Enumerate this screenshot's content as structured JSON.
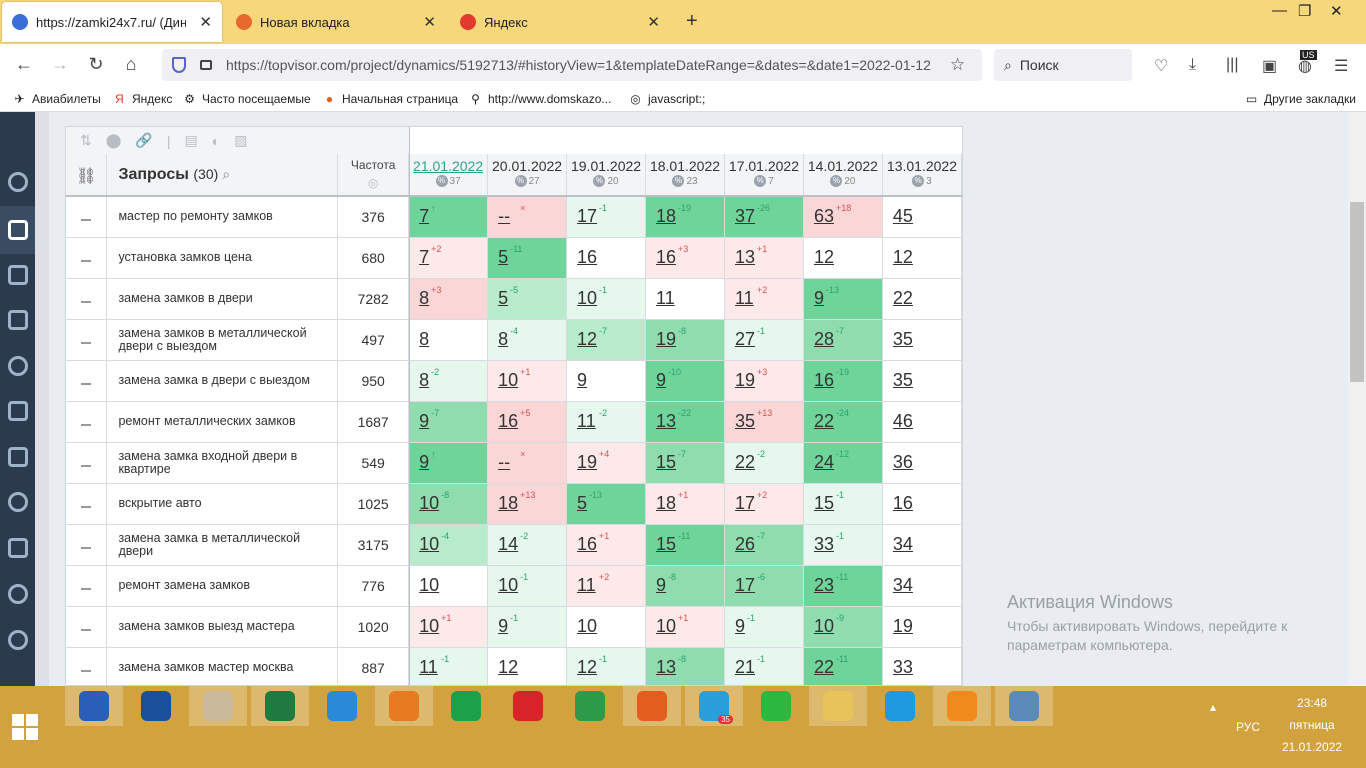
{
  "browser": {
    "tabs": [
      {
        "title": "https://zamki24x7.ru/ (Динамика",
        "favicon_color": "#3a6fd8"
      },
      {
        "title": "Новая вкладка",
        "favicon_color": "#e66a2c"
      },
      {
        "title": "Яндекс",
        "favicon_color": "#e23b2e"
      }
    ],
    "url": "https://topvisor.com/project/dynamics/5192713/#historyView=1&templateDateRange=&dates=&date1=2022-01-12",
    "search_placeholder": "Поиск",
    "bookmarks": [
      "Авиабилеты",
      "Яндекс",
      "Часто посещаемые",
      "Начальная страница",
      "http://www.domskazo...",
      "javascript:;"
    ],
    "other_bookmarks": "Другие закладки",
    "lang_badge": "US"
  },
  "table": {
    "queries_label": "Запросы",
    "queries_count": "(30)",
    "freq_label": "Частота",
    "dates": [
      {
        "date": "21.01.2022",
        "pct": "37",
        "current": true
      },
      {
        "date": "20.01.2022",
        "pct": "27"
      },
      {
        "date": "19.01.2022",
        "pct": "20"
      },
      {
        "date": "18.01.2022",
        "pct": "23"
      },
      {
        "date": "17.01.2022",
        "pct": "7"
      },
      {
        "date": "14.01.2022",
        "pct": "20"
      },
      {
        "date": "13.01.2022",
        "pct": "3"
      }
    ],
    "rows": [
      {
        "q": "мастер по ремонту замков",
        "f": "376",
        "c": [
          [
            "7",
            "↑",
            "up",
            "bg4"
          ],
          [
            "--",
            "×",
            "dn",
            "bgr2"
          ],
          [
            "17",
            "-1",
            "up",
            "bg1"
          ],
          [
            "18",
            "-19",
            "up",
            "bg4"
          ],
          [
            "37",
            "-26",
            "up",
            "bg4"
          ],
          [
            "63",
            "+18",
            "dn",
            "bgr2"
          ],
          [
            "45",
            "",
            "",
            "bg0"
          ]
        ]
      },
      {
        "q": "установка замков цена",
        "f": "680",
        "c": [
          [
            "7",
            "+2",
            "dn",
            "bgr1"
          ],
          [
            "5",
            "-11",
            "up",
            "bg4"
          ],
          [
            "16",
            "",
            "",
            "bg0"
          ],
          [
            "16",
            "+3",
            "dn",
            "bgr1"
          ],
          [
            "13",
            "+1",
            "dn",
            "bgr1"
          ],
          [
            "12",
            "",
            "",
            "bg0"
          ],
          [
            "12",
            "",
            "",
            "bg0"
          ]
        ]
      },
      {
        "q": "замена замков в двери",
        "f": "7282",
        "c": [
          [
            "8",
            "+3",
            "dn",
            "bgr2"
          ],
          [
            "5",
            "-5",
            "up",
            "bg2"
          ],
          [
            "10",
            "-1",
            "up",
            "bg1"
          ],
          [
            "11",
            "",
            "",
            "bg0"
          ],
          [
            "11",
            "+2",
            "dn",
            "bgr1"
          ],
          [
            "9",
            "-13",
            "up",
            "bg4"
          ],
          [
            "22",
            "",
            "",
            "bg0"
          ]
        ]
      },
      {
        "q": "замена замков в металлической двери с выездом",
        "f": "497",
        "c": [
          [
            "8",
            "",
            "",
            "bg0"
          ],
          [
            "8",
            "-4",
            "up",
            "bg1"
          ],
          [
            "12",
            "-7",
            "up",
            "bg2"
          ],
          [
            "19",
            "-8",
            "up",
            "bg3"
          ],
          [
            "27",
            "-1",
            "up",
            "bg1"
          ],
          [
            "28",
            "-7",
            "up",
            "bg3"
          ],
          [
            "35",
            "",
            "",
            "bg0"
          ]
        ]
      },
      {
        "q": "замена замка в двери с выездом",
        "f": "950",
        "c": [
          [
            "8",
            "-2",
            "up",
            "bg1"
          ],
          [
            "10",
            "+1",
            "dn",
            "bgr1"
          ],
          [
            "9",
            "",
            "",
            "bg0"
          ],
          [
            "9",
            "-10",
            "up",
            "bg4"
          ],
          [
            "19",
            "+3",
            "dn",
            "bgr1"
          ],
          [
            "16",
            "-19",
            "up",
            "bg4"
          ],
          [
            "35",
            "",
            "",
            "bg0"
          ]
        ]
      },
      {
        "q": "ремонт металлических замков",
        "f": "1687",
        "c": [
          [
            "9",
            "-7",
            "up",
            "bg3"
          ],
          [
            "16",
            "+5",
            "dn",
            "bgr2"
          ],
          [
            "11",
            "-2",
            "up",
            "bg1"
          ],
          [
            "13",
            "-22",
            "up",
            "bg4"
          ],
          [
            "35",
            "+13",
            "dn",
            "bgr2"
          ],
          [
            "22",
            "-24",
            "up",
            "bg4"
          ],
          [
            "46",
            "",
            "",
            "bg0"
          ]
        ]
      },
      {
        "q": "замена замка входной двери в квартире",
        "f": "549",
        "c": [
          [
            "9",
            "↑",
            "up",
            "bg4"
          ],
          [
            "--",
            "×",
            "dn",
            "bgr2"
          ],
          [
            "19",
            "+4",
            "dn",
            "bgr1"
          ],
          [
            "15",
            "-7",
            "up",
            "bg3"
          ],
          [
            "22",
            "-2",
            "up",
            "bg1"
          ],
          [
            "24",
            "-12",
            "up",
            "bg4"
          ],
          [
            "36",
            "",
            "",
            "bg0"
          ]
        ]
      },
      {
        "q": "вскрытие авто",
        "f": "1025",
        "c": [
          [
            "10",
            "-8",
            "up",
            "bg3"
          ],
          [
            "18",
            "+13",
            "dn",
            "bgr2"
          ],
          [
            "5",
            "-13",
            "up",
            "bg4"
          ],
          [
            "18",
            "+1",
            "dn",
            "bgr1"
          ],
          [
            "17",
            "+2",
            "dn",
            "bgr1"
          ],
          [
            "15",
            "-1",
            "up",
            "bg1"
          ],
          [
            "16",
            "",
            "",
            "bg0"
          ]
        ]
      },
      {
        "q": "замена замка в металлической двери",
        "f": "3175",
        "c": [
          [
            "10",
            "-4",
            "up",
            "bg2"
          ],
          [
            "14",
            "-2",
            "up",
            "bg1"
          ],
          [
            "16",
            "+1",
            "dn",
            "bgr1"
          ],
          [
            "15",
            "-11",
            "up",
            "bg4"
          ],
          [
            "26",
            "-7",
            "up",
            "bg3"
          ],
          [
            "33",
            "-1",
            "up",
            "bg1"
          ],
          [
            "34",
            "",
            "",
            "bg0"
          ]
        ]
      },
      {
        "q": "ремонт замена замков",
        "f": "776",
        "c": [
          [
            "10",
            "",
            "",
            "bg0"
          ],
          [
            "10",
            "-1",
            "up",
            "bg1"
          ],
          [
            "11",
            "+2",
            "dn",
            "bgr1"
          ],
          [
            "9",
            "-8",
            "up",
            "bg3"
          ],
          [
            "17",
            "-6",
            "up",
            "bg3"
          ],
          [
            "23",
            "-11",
            "up",
            "bg4"
          ],
          [
            "34",
            "",
            "",
            "bg0"
          ]
        ]
      },
      {
        "q": "замена замков выезд мастера",
        "f": "1020",
        "c": [
          [
            "10",
            "+1",
            "dn",
            "bgr1"
          ],
          [
            "9",
            "-1",
            "up",
            "bg1"
          ],
          [
            "10",
            "",
            "",
            "bg0"
          ],
          [
            "10",
            "+1",
            "dn",
            "bgr1"
          ],
          [
            "9",
            "-1",
            "up",
            "bg1"
          ],
          [
            "10",
            "-9",
            "up",
            "bg3"
          ],
          [
            "19",
            "",
            "",
            "bg0"
          ]
        ]
      },
      {
        "q": "замена замков мастер москва",
        "f": "887",
        "c": [
          [
            "11",
            "-1",
            "up",
            "bg1"
          ],
          [
            "12",
            "",
            "",
            "bg0"
          ],
          [
            "12",
            "-1",
            "up",
            "bg1"
          ],
          [
            "13",
            "-8",
            "up",
            "bg3"
          ],
          [
            "21",
            "-1",
            "up",
            "bg1"
          ],
          [
            "22",
            "-11",
            "up",
            "bg4"
          ],
          [
            "33",
            "",
            "",
            "bg0"
          ]
        ]
      }
    ]
  },
  "activation": {
    "title": "Активация Windows",
    "line1": "Чтобы активировать Windows, перейдите к",
    "line2": "параметрам компьютера."
  },
  "tray": {
    "lang": "РУС",
    "time": "23:48",
    "day": "пятница",
    "date": "21.01.2022"
  },
  "taskbar_apps": [
    {
      "name": "word",
      "color": "#2b5eb8",
      "open": true
    },
    {
      "name": "hp",
      "color": "#1a4f9c",
      "open": false
    },
    {
      "name": "paint",
      "color": "#c9b89a",
      "open": true
    },
    {
      "name": "excel",
      "color": "#1f7a3f",
      "open": true
    },
    {
      "name": "ie",
      "color": "#2a8ad8",
      "open": false
    },
    {
      "name": "avast",
      "color": "#e87a22",
      "open": true
    },
    {
      "name": "store",
      "color": "#1aa14a",
      "open": false
    },
    {
      "name": "opera",
      "color": "#d8232a",
      "open": false
    },
    {
      "name": "chrome",
      "color": "#2c9a48",
      "open": false
    },
    {
      "name": "firefox",
      "color": "#e35e1e",
      "open": true
    },
    {
      "name": "telegram",
      "color": "#2a9ed8",
      "open": true
    },
    {
      "name": "whatsapp",
      "color": "#2bb740",
      "open": false
    },
    {
      "name": "explorer",
      "color": "#e8c35a",
      "open": true
    },
    {
      "name": "skype",
      "color": "#1e9ae0",
      "open": false
    },
    {
      "name": "pdf",
      "color": "#f08a1c",
      "open": true
    },
    {
      "name": "photos",
      "color": "#5b8ab8",
      "open": true
    }
  ],
  "telegram_badge": "35"
}
